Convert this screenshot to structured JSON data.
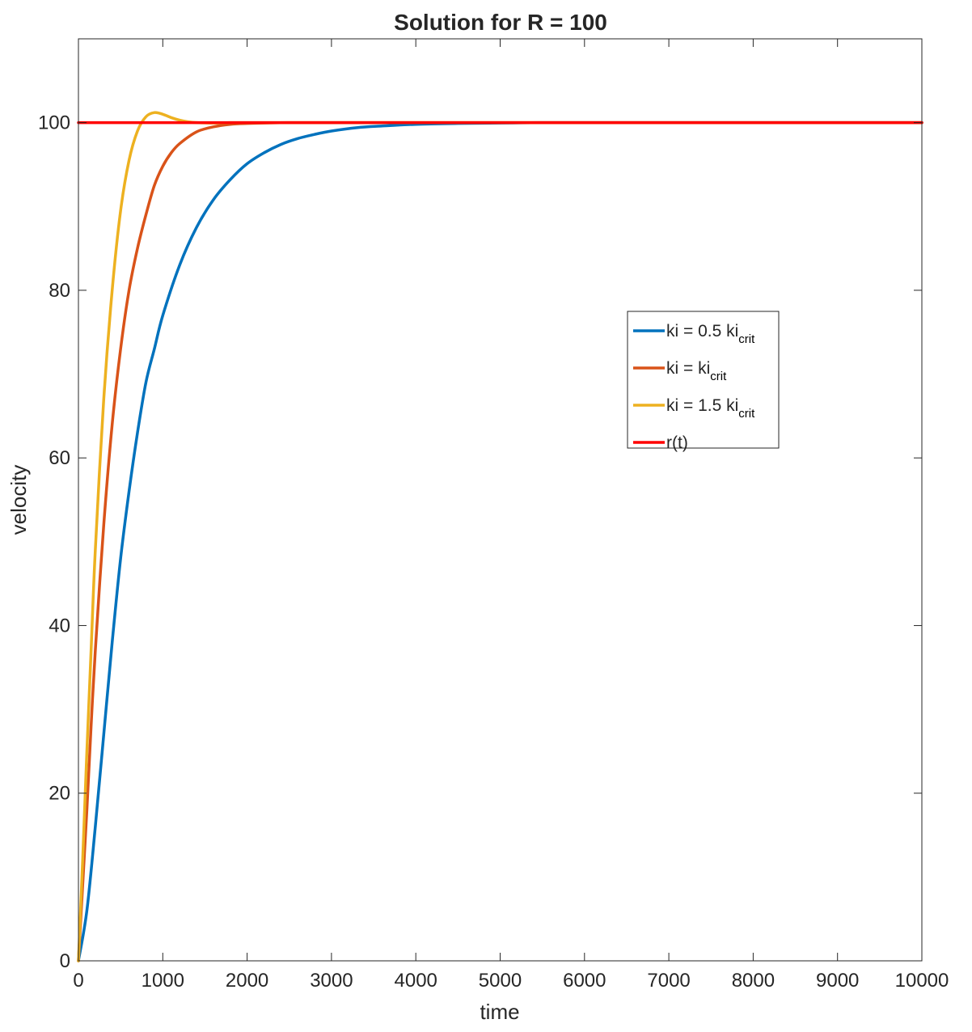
{
  "chart_data": {
    "type": "line",
    "title": "Solution for R = 100",
    "xlabel": "time",
    "ylabel": "velocity",
    "xlim": [
      0,
      10000
    ],
    "ylim": [
      0,
      110
    ],
    "xticks": [
      0,
      1000,
      2000,
      3000,
      4000,
      5000,
      6000,
      7000,
      8000,
      9000,
      10000
    ],
    "yticks": [
      0,
      20,
      40,
      60,
      80,
      100
    ],
    "grid": false,
    "legend_position": "right",
    "series": [
      {
        "name": "ki = 0.5 ki",
        "name_subscript": "crit",
        "color": "#0072BD",
        "x": [
          0,
          100,
          200,
          300,
          400,
          500,
          600,
          700,
          800,
          900,
          1000,
          1200,
          1400,
          1600,
          1800,
          2000,
          2200,
          2400,
          2600,
          2800,
          3000,
          3300,
          3600,
          4000,
          4500,
          5000,
          5500,
          6000,
          7000,
          8000,
          9000,
          10000
        ],
        "y": [
          0,
          6,
          16,
          27,
          38,
          48,
          56,
          63,
          69,
          73,
          77,
          83,
          87.5,
          90.8,
          93.2,
          95.1,
          96.4,
          97.4,
          98.1,
          98.6,
          99.0,
          99.4,
          99.6,
          99.8,
          99.9,
          99.95,
          100,
          100,
          100,
          100,
          100,
          100
        ]
      },
      {
        "name": "ki = ki",
        "name_subscript": "crit",
        "color": "#D95319",
        "x": [
          0,
          50,
          100,
          150,
          200,
          300,
          400,
          500,
          600,
          700,
          800,
          900,
          1000,
          1100,
          1200,
          1400,
          1600,
          1800,
          2000,
          2500,
          3000,
          4000,
          5000,
          6000,
          8000,
          10000
        ],
        "y": [
          0,
          9,
          18,
          28,
          37,
          52,
          64,
          73,
          80,
          85,
          89,
          92.5,
          94.8,
          96.4,
          97.5,
          98.9,
          99.5,
          99.8,
          99.9,
          100,
          100,
          100,
          100,
          100,
          100,
          100
        ]
      },
      {
        "name": "ki = 1.5 ki",
        "name_subscript": "crit",
        "color": "#EDB120",
        "x": [
          0,
          50,
          100,
          150,
          200,
          300,
          400,
          500,
          600,
          700,
          800,
          900,
          1000,
          1100,
          1200,
          1300,
          1400,
          1600,
          1800,
          2000,
          2500,
          3000,
          4000,
          5000,
          6000,
          8000,
          10000
        ],
        "y": [
          0,
          12,
          25,
          37,
          49,
          67,
          80,
          89.5,
          95.5,
          99,
          100.7,
          101.2,
          101.0,
          100.6,
          100.3,
          100.1,
          100.0,
          99.95,
          100,
          100,
          100,
          100,
          100,
          100,
          100,
          100,
          100
        ]
      },
      {
        "name": "r(t)",
        "name_subscript": "",
        "color": "#FF0000",
        "x": [
          0,
          10000
        ],
        "y": [
          100,
          100
        ]
      }
    ]
  }
}
